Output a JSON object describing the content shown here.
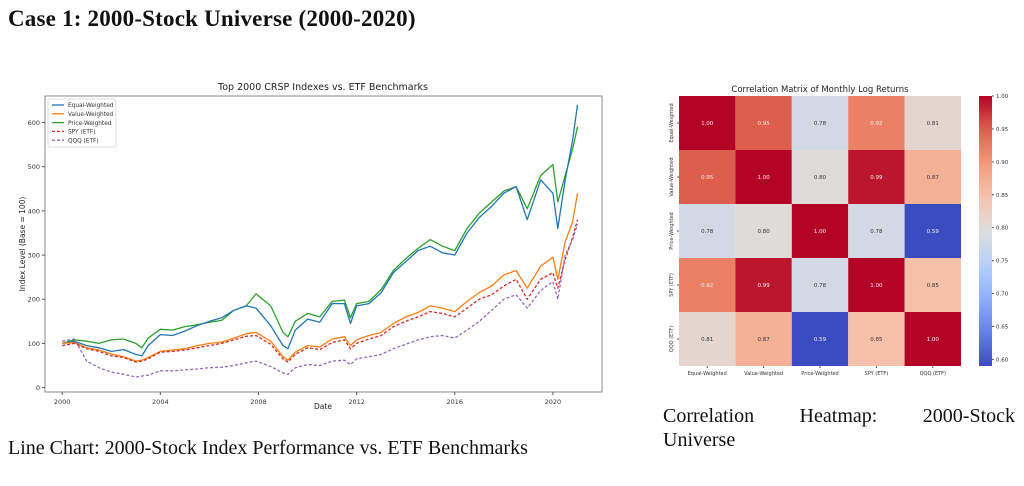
{
  "page": {
    "section_title": "Case 1: 2000-Stock Universe (2000-2020)",
    "captions": {
      "line_chart": "Line Chart: 2000-Stock Index Performance vs. ETF Benchmarks",
      "heatmap_line1": "Correlation Heatmap: 2000-Stock",
      "heatmap_line2": "Universe"
    }
  },
  "chart_data": [
    {
      "type": "line",
      "title": "Top 2000 CRSP Indexes vs. ETF Benchmarks",
      "xlabel": "Date",
      "ylabel": "Index Level (Base = 100)",
      "xlim": [
        1999.3,
        2022.0
      ],
      "ylim": [
        -10,
        660
      ],
      "x_ticks": [
        2000,
        2004,
        2008,
        2012,
        2016,
        2020
      ],
      "y_ticks": [
        0,
        100,
        200,
        300,
        400,
        500,
        600
      ],
      "grid": false,
      "legend": "top-left",
      "x": [
        2000.0,
        2000.5,
        2001.0,
        2001.5,
        2002.0,
        2002.5,
        2003.0,
        2003.25,
        2003.5,
        2004.0,
        2004.5,
        2005.0,
        2005.5,
        2006.0,
        2006.5,
        2007.0,
        2007.5,
        2007.9,
        2008.5,
        2009.0,
        2009.2,
        2009.5,
        2010.0,
        2010.5,
        2011.0,
        2011.5,
        2011.75,
        2012.0,
        2012.5,
        2013.0,
        2013.5,
        2014.0,
        2014.5,
        2015.0,
        2015.5,
        2016.0,
        2016.5,
        2017.0,
        2017.5,
        2018.0,
        2018.5,
        2018.95,
        2019.5,
        2020.0,
        2020.2,
        2020.5,
        2020.8,
        2021.0
      ],
      "series": [
        {
          "name": "Equal-Weighted",
          "color": "#1f77b4",
          "style": "solid",
          "values": [
            100,
            105,
            95,
            90,
            82,
            86,
            75,
            72,
            95,
            120,
            118,
            128,
            140,
            150,
            158,
            175,
            185,
            180,
            140,
            95,
            88,
            130,
            155,
            148,
            190,
            190,
            145,
            185,
            190,
            215,
            260,
            285,
            310,
            320,
            305,
            300,
            350,
            385,
            410,
            440,
            455,
            380,
            470,
            440,
            360,
            470,
            560,
            640
          ]
        },
        {
          "name": "Value-Weighted",
          "color": "#ff7f0e",
          "style": "solid",
          "values": [
            100,
            102,
            90,
            85,
            76,
            70,
            60,
            62,
            68,
            82,
            85,
            88,
            95,
            100,
            103,
            112,
            122,
            125,
            105,
            70,
            62,
            80,
            95,
            92,
            110,
            115,
            95,
            108,
            118,
            125,
            145,
            160,
            170,
            185,
            180,
            172,
            195,
            215,
            230,
            255,
            265,
            225,
            275,
            295,
            245,
            330,
            375,
            440
          ]
        },
        {
          "name": "Price-Weighted",
          "color": "#2ca02c",
          "style": "solid",
          "values": [
            100,
            108,
            105,
            100,
            108,
            110,
            100,
            90,
            112,
            132,
            130,
            138,
            142,
            148,
            152,
            175,
            185,
            212,
            185,
            125,
            115,
            150,
            168,
            160,
            195,
            198,
            158,
            190,
            195,
            222,
            265,
            292,
            315,
            335,
            320,
            310,
            360,
            395,
            420,
            445,
            455,
            405,
            480,
            505,
            420,
            480,
            540,
            590
          ]
        },
        {
          "name": "SPY (ETF)",
          "color": "#d62728",
          "style": "dashed",
          "values": [
            95,
            100,
            88,
            82,
            72,
            68,
            58,
            60,
            65,
            80,
            82,
            85,
            90,
            95,
            100,
            108,
            116,
            118,
            98,
            65,
            58,
            75,
            90,
            86,
            102,
            108,
            88,
            100,
            110,
            118,
            138,
            150,
            160,
            172,
            168,
            160,
            180,
            200,
            210,
            230,
            245,
            200,
            245,
            260,
            225,
            290,
            340,
            380
          ]
        },
        {
          "name": "QQQ (ETF)",
          "color": "#9467bd",
          "style": "dashed",
          "values": [
            105,
            110,
            60,
            45,
            35,
            30,
            24,
            26,
            28,
            38,
            38,
            40,
            42,
            45,
            46,
            50,
            56,
            60,
            48,
            33,
            30,
            45,
            52,
            50,
            60,
            62,
            52,
            65,
            70,
            75,
            88,
            98,
            108,
            115,
            118,
            112,
            130,
            150,
            175,
            200,
            210,
            180,
            220,
            240,
            200,
            300,
            335,
            370
          ]
        }
      ]
    },
    {
      "type": "heatmap",
      "title": "Correlation Matrix of Monthly Log Returns",
      "labels": [
        "Equal-Weighted",
        "Value-Weighted",
        "Price-Weighted",
        "SPY (ETF)",
        "QQQ (ETF)"
      ],
      "matrix": [
        [
          1.0,
          0.95,
          0.78,
          0.92,
          0.81
        ],
        [
          0.95,
          1.0,
          0.8,
          0.99,
          0.87
        ],
        [
          0.78,
          0.8,
          1.0,
          0.78,
          0.59
        ],
        [
          0.92,
          0.99,
          0.78,
          1.0,
          0.85
        ],
        [
          0.81,
          0.87,
          0.59,
          0.85,
          1.0
        ]
      ],
      "colormap": "coolwarm",
      "vmin": 0.59,
      "vmax": 1.0,
      "colorbar_ticks": [
        0.6,
        0.65,
        0.7,
        0.75,
        0.8,
        0.85,
        0.9,
        0.95,
        1.0
      ],
      "value_format": "0.00"
    }
  ]
}
